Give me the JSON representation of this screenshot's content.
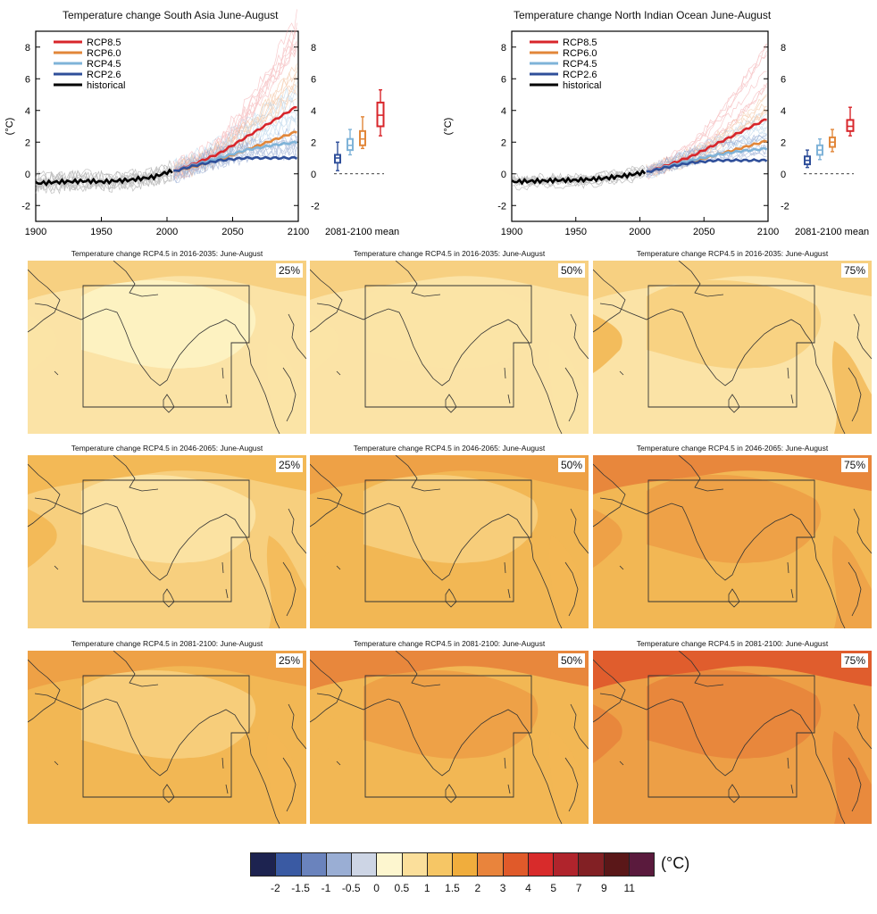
{
  "timeseries": [
    {
      "title": "Temperature change South Asia June-August",
      "ylabel": "(°C)",
      "xticks": [
        "1900",
        "1950",
        "2000",
        "2050",
        "2100"
      ],
      "yticks": [
        "-2",
        "0",
        "2",
        "4",
        "6",
        "8"
      ],
      "mean_label": "2081-2100 mean"
    },
    {
      "title": "Temperature change North Indian Ocean June-August",
      "ylabel": "(°C)",
      "xticks": [
        "1900",
        "1950",
        "2000",
        "2050",
        "2100"
      ],
      "yticks": [
        "-2",
        "0",
        "2",
        "4",
        "6",
        "8"
      ],
      "mean_label": "2081-2100 mean"
    }
  ],
  "legend_entries": [
    "RCP8.5",
    "RCP6.0",
    "RCP4.5",
    "RCP2.6",
    "historical"
  ],
  "map_titles": [
    "Temperature change RCP4.5 in 2016-2035: June-August",
    "Temperature change RCP4.5 in 2046-2065: June-August",
    "Temperature change RCP4.5 in 2081-2100: June-August"
  ],
  "percentiles": [
    "25%",
    "50%",
    "75%"
  ],
  "colorbar": {
    "unit": "(°C)",
    "colors": [
      "#1d2350",
      "#3a5aa3",
      "#6a83bd",
      "#9aaed4",
      "#cdd5e5",
      "#fdf6cf",
      "#fbdf9b",
      "#f6c665",
      "#f0ad3d",
      "#e9843c",
      "#e05a2a",
      "#d82b2b",
      "#b0242c",
      "#822024",
      "#5a1718",
      "#5a1a3d"
    ],
    "ticks": [
      "-2",
      "-1.5",
      "-1",
      "-0.5",
      "0",
      "0.5",
      "1",
      "1.5",
      "2",
      "3",
      "4",
      "5",
      "7",
      "9",
      "11"
    ]
  },
  "chart_data": [
    {
      "type": "line",
      "title": "Temperature change South Asia June-August",
      "ylabel": "(°C)",
      "xlim": [
        1900,
        2100
      ],
      "ylim": [
        -3,
        9
      ],
      "series": [
        {
          "name": "historical",
          "color": "#000000",
          "x": [
            1900,
            1920,
            1940,
            1950,
            1960,
            1970,
            1980,
            1990,
            2000,
            2005
          ],
          "y": [
            -0.6,
            -0.5,
            -0.45,
            -0.5,
            -0.45,
            -0.4,
            -0.3,
            -0.2,
            0.1,
            0.15
          ]
        },
        {
          "name": "RCP2.6",
          "color": "#2f4f9a",
          "x": [
            2005,
            2020,
            2040,
            2060,
            2080,
            2100
          ],
          "y": [
            0.15,
            0.5,
            0.85,
            1.0,
            1.0,
            1.0
          ]
        },
        {
          "name": "RCP4.5",
          "color": "#7fb3d8",
          "x": [
            2005,
            2020,
            2040,
            2060,
            2080,
            2100
          ],
          "y": [
            0.15,
            0.55,
            1.0,
            1.5,
            1.8,
            2.0
          ]
        },
        {
          "name": "RCP6.0",
          "color": "#e2873a",
          "x": [
            2005,
            2020,
            2040,
            2060,
            2080,
            2100
          ],
          "y": [
            0.15,
            0.45,
            0.9,
            1.5,
            2.1,
            2.7
          ]
        },
        {
          "name": "RCP8.5",
          "color": "#d8262b",
          "x": [
            2005,
            2020,
            2040,
            2060,
            2080,
            2100
          ],
          "y": [
            0.15,
            0.6,
            1.3,
            2.3,
            3.3,
            4.3
          ]
        }
      ],
      "boxes_2081_2100": [
        {
          "name": "RCP2.6",
          "color": "#2f4f9a",
          "min": 0.2,
          "q1": 0.7,
          "median": 1.0,
          "q3": 1.2,
          "max": 2.0
        },
        {
          "name": "RCP4.5",
          "color": "#7fb3d8",
          "min": 1.2,
          "q1": 1.5,
          "median": 1.8,
          "q3": 2.2,
          "max": 2.8
        },
        {
          "name": "RCP6.0",
          "color": "#e2873a",
          "min": 1.6,
          "q1": 1.8,
          "median": 2.2,
          "q3": 2.7,
          "max": 3.6
        },
        {
          "name": "RCP8.5",
          "color": "#d8262b",
          "min": 2.4,
          "q1": 3.0,
          "median": 3.7,
          "q3": 4.5,
          "max": 5.3
        }
      ]
    },
    {
      "type": "line",
      "title": "Temperature change North Indian Ocean June-August",
      "ylabel": "(°C)",
      "xlim": [
        1900,
        2100
      ],
      "ylim": [
        -3,
        9
      ],
      "series": [
        {
          "name": "historical",
          "color": "#000000",
          "x": [
            1900,
            1920,
            1940,
            1950,
            1960,
            1970,
            1980,
            1990,
            2000,
            2005
          ],
          "y": [
            -0.5,
            -0.45,
            -0.4,
            -0.4,
            -0.35,
            -0.3,
            -0.2,
            -0.1,
            0.05,
            0.1
          ]
        },
        {
          "name": "RCP2.6",
          "color": "#2f4f9a",
          "x": [
            2005,
            2020,
            2040,
            2060,
            2080,
            2100
          ],
          "y": [
            0.1,
            0.4,
            0.7,
            0.85,
            0.85,
            0.85
          ]
        },
        {
          "name": "RCP4.5",
          "color": "#7fb3d8",
          "x": [
            2005,
            2020,
            2040,
            2060,
            2080,
            2100
          ],
          "y": [
            0.1,
            0.45,
            0.85,
            1.2,
            1.45,
            1.6
          ]
        },
        {
          "name": "RCP6.0",
          "color": "#e2873a",
          "x": [
            2005,
            2020,
            2040,
            2060,
            2080,
            2100
          ],
          "y": [
            0.1,
            0.4,
            0.75,
            1.2,
            1.65,
            2.1
          ]
        },
        {
          "name": "RCP8.5",
          "color": "#d8262b",
          "x": [
            2005,
            2020,
            2040,
            2060,
            2080,
            2100
          ],
          "y": [
            0.1,
            0.5,
            1.1,
            1.9,
            2.7,
            3.5
          ]
        }
      ],
      "boxes_2081_2100": [
        {
          "name": "RCP2.6",
          "color": "#2f4f9a",
          "min": 0.4,
          "q1": 0.6,
          "median": 0.85,
          "q3": 1.1,
          "max": 1.5
        },
        {
          "name": "RCP4.5",
          "color": "#7fb3d8",
          "min": 0.9,
          "q1": 1.2,
          "median": 1.5,
          "q3": 1.8,
          "max": 2.2
        },
        {
          "name": "RCP6.0",
          "color": "#e2873a",
          "min": 1.4,
          "q1": 1.7,
          "median": 2.0,
          "q3": 2.3,
          "max": 2.8
        },
        {
          "name": "RCP8.5",
          "color": "#d8262b",
          "min": 2.4,
          "q1": 2.7,
          "median": 3.0,
          "q3": 3.4,
          "max": 4.2
        }
      ]
    }
  ]
}
